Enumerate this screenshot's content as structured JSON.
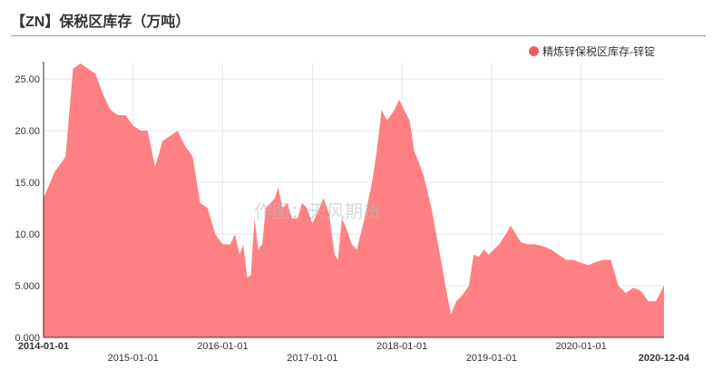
{
  "title": "【ZN】保税区库存（万吨）",
  "watermark": "作图：天风期货",
  "colors": {
    "series": "#ff8082",
    "legend_dot": "#f25c5f",
    "grid": "#e6e6e6",
    "axis": "#333333"
  },
  "chart_data": {
    "type": "area",
    "title": "【ZN】保税区库存（万吨）",
    "xlabel": "",
    "ylabel": "",
    "ylim": [
      0,
      26.5
    ],
    "xlim": [
      "2014-01-01",
      "2020-12-04"
    ],
    "grid": true,
    "legend_position": "top-right",
    "y_ticks": [
      "0.000",
      "5.000",
      "10.00",
      "15.00",
      "20.00",
      "25.00"
    ],
    "x_ticks": [
      "2014-01-01",
      "2015-01-01",
      "2016-01-01",
      "2017-01-01",
      "2018-01-01",
      "2019-01-01",
      "2020-01-01",
      "2020-12-04"
    ],
    "series": [
      {
        "name": "精炼锌保税区库存-锌锭",
        "points": [
          [
            "2014-01-01",
            13.5
          ],
          [
            "2014-02-15",
            16.0
          ],
          [
            "2014-04-01",
            17.5
          ],
          [
            "2014-05-01",
            26.0
          ],
          [
            "2014-06-01",
            26.5
          ],
          [
            "2014-07-01",
            26.0
          ],
          [
            "2014-08-01",
            25.5
          ],
          [
            "2014-09-01",
            23.5
          ],
          [
            "2014-10-01",
            22.0
          ],
          [
            "2014-11-01",
            21.5
          ],
          [
            "2014-12-01",
            21.5
          ],
          [
            "2015-01-01",
            20.5
          ],
          [
            "2015-02-01",
            20.0
          ],
          [
            "2015-03-01",
            20.0
          ],
          [
            "2015-04-01",
            16.5
          ],
          [
            "2015-05-01",
            19.0
          ],
          [
            "2015-06-01",
            19.5
          ],
          [
            "2015-07-01",
            20.0
          ],
          [
            "2015-08-01",
            18.5
          ],
          [
            "2015-09-01",
            17.5
          ],
          [
            "2015-10-01",
            13.0
          ],
          [
            "2015-11-01",
            12.5
          ],
          [
            "2015-12-01",
            10.0
          ],
          [
            "2016-01-01",
            9.0
          ],
          [
            "2016-02-01",
            9.0
          ],
          [
            "2016-02-20",
            10.0
          ],
          [
            "2016-03-10",
            8.0
          ],
          [
            "2016-03-25",
            9.0
          ],
          [
            "2016-04-10",
            5.8
          ],
          [
            "2016-04-25",
            6.0
          ],
          [
            "2016-05-10",
            11.5
          ],
          [
            "2016-05-25",
            8.5
          ],
          [
            "2016-06-10",
            9.0
          ],
          [
            "2016-06-25",
            12.5
          ],
          [
            "2016-07-15",
            13.0
          ],
          [
            "2016-08-01",
            13.5
          ],
          [
            "2016-08-15",
            14.5
          ],
          [
            "2016-09-01",
            12.5
          ],
          [
            "2016-09-20",
            13.0
          ],
          [
            "2016-10-10",
            11.5
          ],
          [
            "2016-11-01",
            11.5
          ],
          [
            "2016-11-20",
            13.0
          ],
          [
            "2016-12-10",
            12.5
          ],
          [
            "2017-01-01",
            11.0
          ],
          [
            "2017-01-20",
            12.0
          ],
          [
            "2017-02-15",
            13.5
          ],
          [
            "2017-03-10",
            12.0
          ],
          [
            "2017-04-01",
            8.0
          ],
          [
            "2017-04-15",
            7.5
          ],
          [
            "2017-05-01",
            11.5
          ],
          [
            "2017-05-20",
            10.5
          ],
          [
            "2017-06-10",
            9.0
          ],
          [
            "2017-07-01",
            8.5
          ],
          [
            "2017-08-01",
            11.5
          ],
          [
            "2017-09-01",
            15.0
          ],
          [
            "2017-09-20",
            18.0
          ],
          [
            "2017-10-10",
            22.0
          ],
          [
            "2017-11-01",
            21.0
          ],
          [
            "2017-12-01",
            22.0
          ],
          [
            "2017-12-20",
            23.0
          ],
          [
            "2018-01-10",
            22.0
          ],
          [
            "2018-02-01",
            21.0
          ],
          [
            "2018-02-20",
            18.0
          ],
          [
            "2018-03-10",
            17.0
          ],
          [
            "2018-04-01",
            15.5
          ],
          [
            "2018-05-01",
            12.5
          ],
          [
            "2018-06-01",
            8.5
          ],
          [
            "2018-07-01",
            4.5
          ],
          [
            "2018-07-20",
            2.2
          ],
          [
            "2018-08-10",
            3.5
          ],
          [
            "2018-09-01",
            4.0
          ],
          [
            "2018-10-01",
            5.0
          ],
          [
            "2018-10-20",
            8.0
          ],
          [
            "2018-11-10",
            7.8
          ],
          [
            "2018-12-01",
            8.5
          ],
          [
            "2018-12-20",
            8.0
          ],
          [
            "2019-01-10",
            8.5
          ],
          [
            "2019-02-01",
            9.0
          ],
          [
            "2019-03-01",
            10.0
          ],
          [
            "2019-03-20",
            10.8
          ],
          [
            "2019-04-10",
            10.0
          ],
          [
            "2019-05-01",
            9.2
          ],
          [
            "2019-06-01",
            9.0
          ],
          [
            "2019-07-01",
            9.0
          ],
          [
            "2019-08-01",
            8.8
          ],
          [
            "2019-09-01",
            8.5
          ],
          [
            "2019-10-01",
            8.0
          ],
          [
            "2019-11-01",
            7.5
          ],
          [
            "2019-12-01",
            7.5
          ],
          [
            "2020-01-01",
            7.2
          ],
          [
            "2020-02-01",
            7.0
          ],
          [
            "2020-03-01",
            7.3
          ],
          [
            "2020-04-01",
            7.5
          ],
          [
            "2020-05-01",
            7.5
          ],
          [
            "2020-06-01",
            5.0
          ],
          [
            "2020-07-01",
            4.3
          ],
          [
            "2020-08-01",
            4.8
          ],
          [
            "2020-09-01",
            4.5
          ],
          [
            "2020-10-01",
            3.5
          ],
          [
            "2020-11-01",
            3.5
          ],
          [
            "2020-12-04",
            5.0
          ]
        ]
      }
    ]
  }
}
